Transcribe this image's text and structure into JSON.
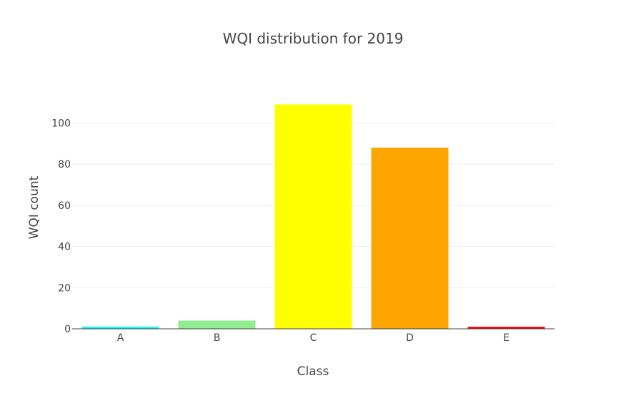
{
  "chart_data": {
    "type": "bar",
    "title": "WQI distribution for 2019",
    "xlabel": "Class",
    "ylabel": "WQI count",
    "categories": [
      "A",
      "B",
      "C",
      "D",
      "E"
    ],
    "values": [
      1,
      4,
      109,
      88,
      1
    ],
    "colors": [
      "#00ffff",
      "#90ee90",
      "#ffff00",
      "#ffa500",
      "#ff0000"
    ],
    "ylim": [
      0,
      114.7
    ],
    "yticks": [
      0,
      20,
      40,
      60,
      80,
      100
    ],
    "grid": true,
    "legend": "none"
  }
}
